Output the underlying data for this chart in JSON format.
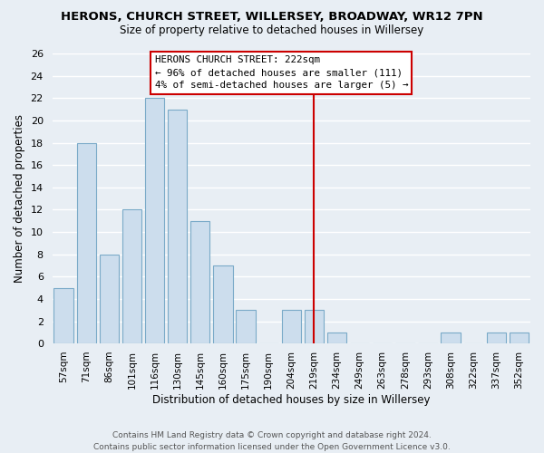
{
  "title": "HERONS, CHURCH STREET, WILLERSEY, BROADWAY, WR12 7PN",
  "subtitle": "Size of property relative to detached houses in Willersey",
  "xlabel": "Distribution of detached houses by size in Willersey",
  "ylabel": "Number of detached properties",
  "footer_line1": "Contains HM Land Registry data © Crown copyright and database right 2024.",
  "footer_line2": "Contains public sector information licensed under the Open Government Licence v3.0.",
  "categories": [
    "57sqm",
    "71sqm",
    "86sqm",
    "101sqm",
    "116sqm",
    "130sqm",
    "145sqm",
    "160sqm",
    "175sqm",
    "190sqm",
    "204sqm",
    "219sqm",
    "234sqm",
    "249sqm",
    "263sqm",
    "278sqm",
    "293sqm",
    "308sqm",
    "322sqm",
    "337sqm",
    "352sqm"
  ],
  "values": [
    5,
    18,
    8,
    12,
    22,
    21,
    11,
    7,
    3,
    0,
    3,
    3,
    1,
    0,
    0,
    0,
    0,
    1,
    0,
    1,
    1
  ],
  "bar_color": "#ccdded",
  "bar_edge_color": "#7aaac8",
  "marker_index": 11,
  "annotation_title": "HERONS CHURCH STREET: 222sqm",
  "annotation_line1": "← 96% of detached houses are smaller (111)",
  "annotation_line2": "4% of semi-detached houses are larger (5) →",
  "ylim": [
    0,
    26
  ],
  "yticks": [
    0,
    2,
    4,
    6,
    8,
    10,
    12,
    14,
    16,
    18,
    20,
    22,
    24,
    26
  ],
  "background_color": "#e8eef4",
  "plot_bg_color": "#e8eef4",
  "grid_color": "#ffffff",
  "marker_line_color": "#cc0000",
  "title_fontsize": 9.5,
  "subtitle_fontsize": 8.5,
  "axis_label_fontsize": 8.5,
  "tick_fontsize": 8,
  "xtick_fontsize": 7.5,
  "footer_fontsize": 6.5
}
